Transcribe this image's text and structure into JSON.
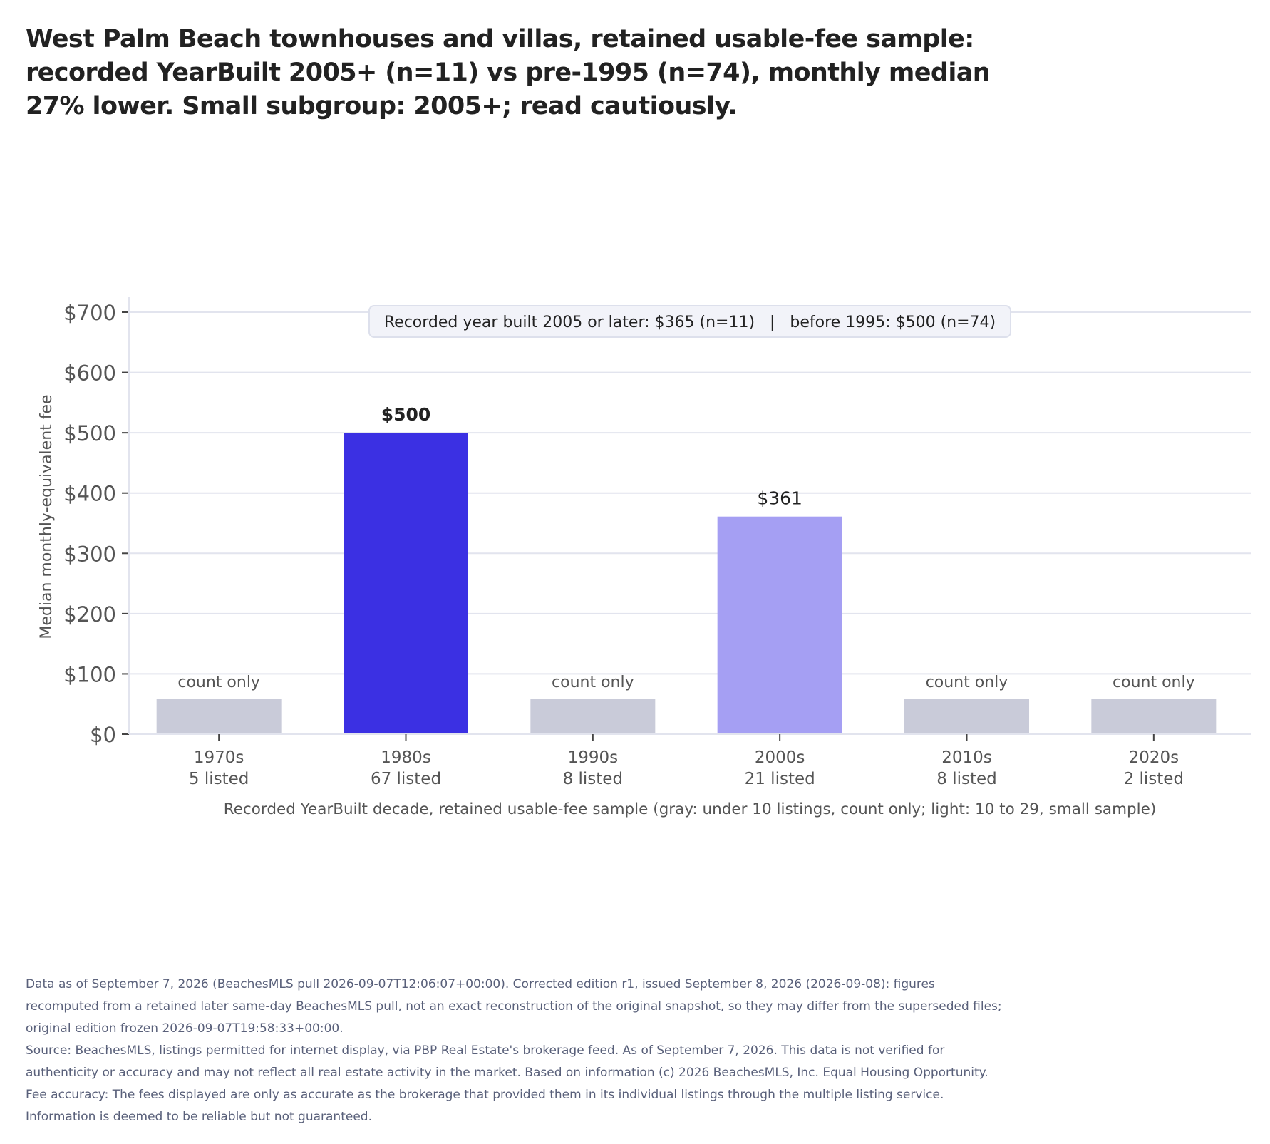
{
  "title": "West Palm Beach townhouses and villas, retained usable-fee sample: recorded YearBuilt 2005+ (n=11) vs pre-1995 (n=74), monthly median 27% lower. Small subgroup: 2005+; read cautiously.",
  "annotation": "Recorded year built 2005 or later: $365 (n=11)   |   before 1995: $500 (n=74)",
  "footnotes": {
    "edition": "Data as of September 7, 2026 (BeachesMLS pull 2026-09-07T12:06:07+00:00). Corrected edition r1, issued September 8, 2026 (2026-09-08): figures recomputed from a retained later same-day BeachesMLS pull, not an exact reconstruction of the original snapshot, so they may differ from the superseded files; original edition frozen 2026-09-07T19:58:33+00:00.",
    "source": "Source: BeachesMLS, listings permitted for internet display, via PBP Real Estate's brokerage feed. As of September 7, 2026. This data is not verified for authenticity or accuracy and may not reflect all real estate activity in the market. Based on information (c) 2026 BeachesMLS, Inc. Equal Housing Opportunity. Fee accuracy: The fees displayed are only as accurate as the brokerage that provided them in its individual listings through the multiple listing service. Information is deemed to be reliable but not guaranteed."
  },
  "colors": {
    "primary": "#3b30e3",
    "small_sample": "#a59ff3",
    "count_only": "#c9cbd9",
    "grid": "#e2e4ee",
    "axis_text": "#555555"
  },
  "chart_data": {
    "type": "bar",
    "categories": [
      "1970s",
      "1980s",
      "1990s",
      "2000s",
      "2010s",
      "2020s"
    ],
    "listing_counts": [
      "5 listed",
      "67 listed",
      "8 listed",
      "21 listed",
      "8 listed",
      "2 listed"
    ],
    "values": [
      null,
      500,
      null,
      361,
      null,
      null
    ],
    "bar_labels": [
      "count only",
      "$500",
      "count only",
      "$361",
      "count only",
      "count only"
    ],
    "categories_status": [
      "count-only",
      "full",
      "count-only",
      "small-sample",
      "count-only",
      "count-only"
    ],
    "xlabel": "Recorded YearBuilt decade, retained usable-fee sample (gray: under 10 listings, count only; light: 10 to 29, small sample)",
    "ylabel": "Median monthly-equivalent fee",
    "ylim": [
      0,
      700
    ],
    "yticks": [
      0,
      100,
      200,
      300,
      400,
      500,
      600,
      700
    ],
    "ytick_labels": [
      "$0",
      "$100",
      "$200",
      "$300",
      "$400",
      "$500",
      "$600",
      "$700"
    ],
    "count_only_placeholder_value": 58,
    "grid": true
  }
}
